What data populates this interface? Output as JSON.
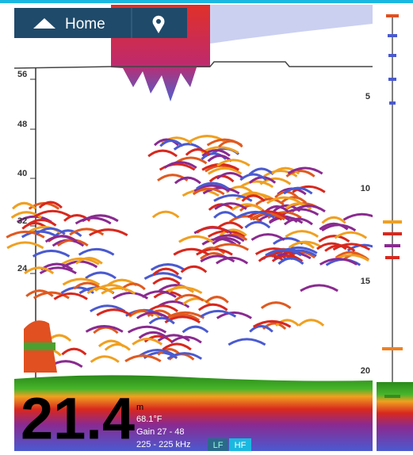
{
  "nav": {
    "home_label": "Home"
  },
  "scale": {
    "left": [
      56,
      48,
      40,
      32,
      24
    ],
    "right": [
      5,
      10,
      15,
      20
    ]
  },
  "depth": {
    "value": "21.4",
    "unit": "m"
  },
  "info": {
    "temperature": "68.1°F",
    "gain": "Gain 27 - 48",
    "frequency": "225 - 225 kHz"
  },
  "modes": [
    "LF",
    "HF"
  ]
}
